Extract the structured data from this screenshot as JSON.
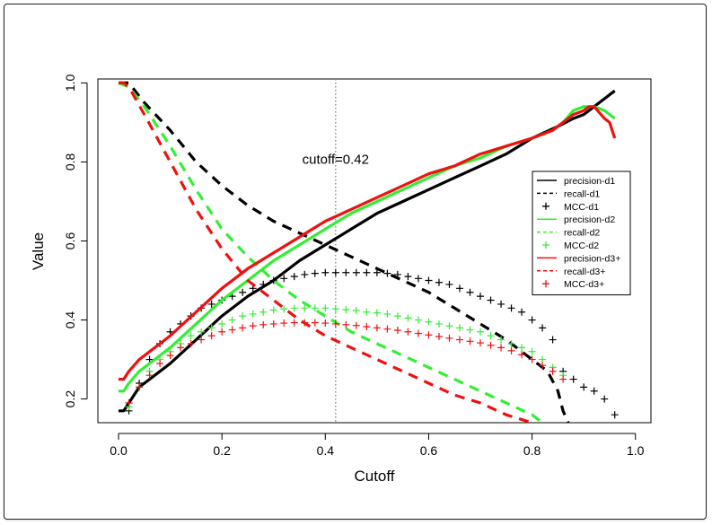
{
  "chart_data": {
    "type": "line",
    "title": "",
    "xlabel": "Cutoff",
    "ylabel": "Value",
    "xlim": [
      -0.04,
      1.03
    ],
    "ylim": [
      0.14,
      1.01
    ],
    "xticks": [
      "0.0",
      "0.2",
      "0.4",
      "0.6",
      "0.8",
      "1.0"
    ],
    "yticks": [
      "0.2",
      "0.4",
      "0.6",
      "0.8",
      "1.0"
    ],
    "xtick_values": [
      0,
      0.2,
      0.4,
      0.6,
      0.8,
      1.0
    ],
    "ytick_values": [
      0.2,
      0.4,
      0.6,
      0.8,
      1.0
    ],
    "cutoff_line": {
      "x": 0.42,
      "label": "cutoff=0.42"
    },
    "legend_position": "right",
    "series": [
      {
        "name": "precision-d1",
        "color": "#000000",
        "style": "solid",
        "x": [
          0.0,
          0.01,
          0.02,
          0.04,
          0.06,
          0.08,
          0.1,
          0.15,
          0.2,
          0.25,
          0.3,
          0.35,
          0.4,
          0.45,
          0.5,
          0.55,
          0.6,
          0.65,
          0.7,
          0.75,
          0.8,
          0.85,
          0.88,
          0.9,
          0.92,
          0.94,
          0.96
        ],
        "y": [
          0.17,
          0.17,
          0.19,
          0.23,
          0.25,
          0.27,
          0.29,
          0.35,
          0.41,
          0.46,
          0.5,
          0.55,
          0.59,
          0.63,
          0.67,
          0.7,
          0.73,
          0.76,
          0.79,
          0.82,
          0.86,
          0.89,
          0.91,
          0.92,
          0.94,
          0.96,
          0.98
        ]
      },
      {
        "name": "recall-d1",
        "color": "#000000",
        "style": "dashed",
        "x": [
          0.0,
          0.02,
          0.05,
          0.1,
          0.15,
          0.2,
          0.25,
          0.3,
          0.35,
          0.4,
          0.45,
          0.5,
          0.55,
          0.6,
          0.65,
          0.7,
          0.75,
          0.8,
          0.83,
          0.85,
          0.86,
          0.87
        ],
        "y": [
          1.0,
          1.0,
          0.95,
          0.88,
          0.8,
          0.74,
          0.69,
          0.65,
          0.62,
          0.59,
          0.56,
          0.53,
          0.5,
          0.47,
          0.43,
          0.39,
          0.35,
          0.3,
          0.27,
          0.22,
          0.17,
          0.14
        ]
      },
      {
        "name": "MCC-d1",
        "color": "#000000",
        "style": "plus",
        "x": [
          0.02,
          0.04,
          0.06,
          0.08,
          0.1,
          0.12,
          0.14,
          0.16,
          0.18,
          0.2,
          0.22,
          0.24,
          0.26,
          0.28,
          0.3,
          0.32,
          0.34,
          0.36,
          0.38,
          0.4,
          0.42,
          0.44,
          0.46,
          0.48,
          0.5,
          0.52,
          0.54,
          0.56,
          0.58,
          0.6,
          0.62,
          0.64,
          0.66,
          0.68,
          0.7,
          0.72,
          0.74,
          0.76,
          0.78,
          0.8,
          0.82,
          0.84,
          0.86,
          0.88,
          0.9,
          0.92,
          0.94,
          0.96
        ],
        "y": [
          0.17,
          0.24,
          0.3,
          0.34,
          0.37,
          0.39,
          0.41,
          0.43,
          0.44,
          0.45,
          0.46,
          0.47,
          0.48,
          0.49,
          0.5,
          0.505,
          0.51,
          0.515,
          0.518,
          0.52,
          0.52,
          0.52,
          0.52,
          0.52,
          0.52,
          0.518,
          0.515,
          0.51,
          0.505,
          0.5,
          0.495,
          0.49,
          0.48,
          0.47,
          0.46,
          0.45,
          0.44,
          0.43,
          0.42,
          0.4,
          0.38,
          0.35,
          0.27,
          0.25,
          0.23,
          0.22,
          0.2,
          0.16
        ]
      },
      {
        "name": "precision-d2",
        "color": "#33ee33",
        "style": "solid",
        "x": [
          0.0,
          0.01,
          0.02,
          0.04,
          0.06,
          0.08,
          0.1,
          0.15,
          0.2,
          0.25,
          0.3,
          0.35,
          0.4,
          0.45,
          0.5,
          0.55,
          0.6,
          0.65,
          0.7,
          0.75,
          0.8,
          0.84,
          0.86,
          0.88,
          0.9,
          0.92,
          0.94,
          0.96
        ],
        "y": [
          0.22,
          0.22,
          0.24,
          0.27,
          0.29,
          0.31,
          0.33,
          0.39,
          0.45,
          0.5,
          0.55,
          0.59,
          0.63,
          0.67,
          0.7,
          0.73,
          0.76,
          0.79,
          0.81,
          0.84,
          0.86,
          0.88,
          0.9,
          0.93,
          0.94,
          0.94,
          0.93,
          0.91
        ]
      },
      {
        "name": "recall-d2",
        "color": "#33ee33",
        "style": "dashed",
        "x": [
          0.0,
          0.02,
          0.05,
          0.1,
          0.15,
          0.2,
          0.25,
          0.3,
          0.35,
          0.4,
          0.45,
          0.5,
          0.55,
          0.6,
          0.65,
          0.7,
          0.75,
          0.8,
          0.82
        ],
        "y": [
          1.0,
          0.99,
          0.94,
          0.84,
          0.73,
          0.63,
          0.56,
          0.5,
          0.45,
          0.41,
          0.37,
          0.34,
          0.31,
          0.28,
          0.25,
          0.22,
          0.19,
          0.16,
          0.14
        ]
      },
      {
        "name": "MCC-d2",
        "color": "#33ee33",
        "style": "plus",
        "x": [
          0.02,
          0.04,
          0.06,
          0.08,
          0.1,
          0.12,
          0.14,
          0.16,
          0.18,
          0.2,
          0.22,
          0.24,
          0.26,
          0.28,
          0.3,
          0.32,
          0.34,
          0.36,
          0.38,
          0.4,
          0.42,
          0.44,
          0.46,
          0.48,
          0.5,
          0.52,
          0.54,
          0.56,
          0.58,
          0.6,
          0.62,
          0.64,
          0.66,
          0.68,
          0.7,
          0.72,
          0.74,
          0.76,
          0.78,
          0.8,
          0.82,
          0.84,
          0.86
        ],
        "y": [
          0.18,
          0.23,
          0.27,
          0.3,
          0.32,
          0.34,
          0.36,
          0.37,
          0.38,
          0.39,
          0.4,
          0.41,
          0.415,
          0.42,
          0.425,
          0.428,
          0.43,
          0.43,
          0.43,
          0.43,
          0.428,
          0.426,
          0.424,
          0.42,
          0.418,
          0.415,
          0.41,
          0.405,
          0.4,
          0.395,
          0.39,
          0.385,
          0.38,
          0.375,
          0.37,
          0.36,
          0.35,
          0.34,
          0.33,
          0.32,
          0.3,
          0.28,
          0.26
        ]
      },
      {
        "name": "precision-d3+",
        "color": "#ee1111",
        "style": "solid",
        "x": [
          0.0,
          0.01,
          0.02,
          0.04,
          0.06,
          0.08,
          0.1,
          0.15,
          0.2,
          0.25,
          0.3,
          0.35,
          0.4,
          0.45,
          0.5,
          0.55,
          0.6,
          0.65,
          0.7,
          0.75,
          0.8,
          0.84,
          0.86,
          0.88,
          0.9,
          0.91,
          0.92,
          0.94,
          0.95,
          0.96
        ],
        "y": [
          0.25,
          0.25,
          0.27,
          0.3,
          0.32,
          0.34,
          0.36,
          0.42,
          0.48,
          0.53,
          0.57,
          0.61,
          0.65,
          0.68,
          0.71,
          0.74,
          0.77,
          0.79,
          0.82,
          0.84,
          0.86,
          0.88,
          0.9,
          0.92,
          0.93,
          0.94,
          0.94,
          0.91,
          0.9,
          0.86
        ]
      },
      {
        "name": "recall-d3+",
        "color": "#ee1111",
        "style": "dashed",
        "x": [
          0.0,
          0.01,
          0.02,
          0.05,
          0.1,
          0.15,
          0.2,
          0.25,
          0.3,
          0.35,
          0.4,
          0.45,
          0.5,
          0.55,
          0.6,
          0.65,
          0.7,
          0.75,
          0.8
        ],
        "y": [
          1.0,
          1.0,
          0.99,
          0.92,
          0.8,
          0.68,
          0.58,
          0.5,
          0.45,
          0.4,
          0.36,
          0.33,
          0.3,
          0.27,
          0.24,
          0.21,
          0.19,
          0.16,
          0.14
        ]
      },
      {
        "name": "MCC-d3+",
        "color": "#ee1111",
        "style": "plus",
        "x": [
          0.02,
          0.04,
          0.06,
          0.08,
          0.1,
          0.12,
          0.14,
          0.16,
          0.18,
          0.2,
          0.22,
          0.24,
          0.26,
          0.28,
          0.3,
          0.32,
          0.34,
          0.36,
          0.38,
          0.4,
          0.42,
          0.44,
          0.46,
          0.48,
          0.5,
          0.52,
          0.54,
          0.56,
          0.58,
          0.6,
          0.62,
          0.64,
          0.66,
          0.68,
          0.7,
          0.72,
          0.74,
          0.76,
          0.78,
          0.8,
          0.82,
          0.84,
          0.86
        ],
        "y": [
          0.19,
          0.23,
          0.26,
          0.29,
          0.31,
          0.33,
          0.34,
          0.35,
          0.36,
          0.37,
          0.375,
          0.38,
          0.385,
          0.388,
          0.39,
          0.392,
          0.393,
          0.393,
          0.393,
          0.392,
          0.39,
          0.388,
          0.386,
          0.383,
          0.38,
          0.377,
          0.374,
          0.37,
          0.366,
          0.362,
          0.358,
          0.354,
          0.35,
          0.346,
          0.342,
          0.336,
          0.33,
          0.322,
          0.312,
          0.3,
          0.285,
          0.27,
          0.25
        ]
      }
    ]
  }
}
